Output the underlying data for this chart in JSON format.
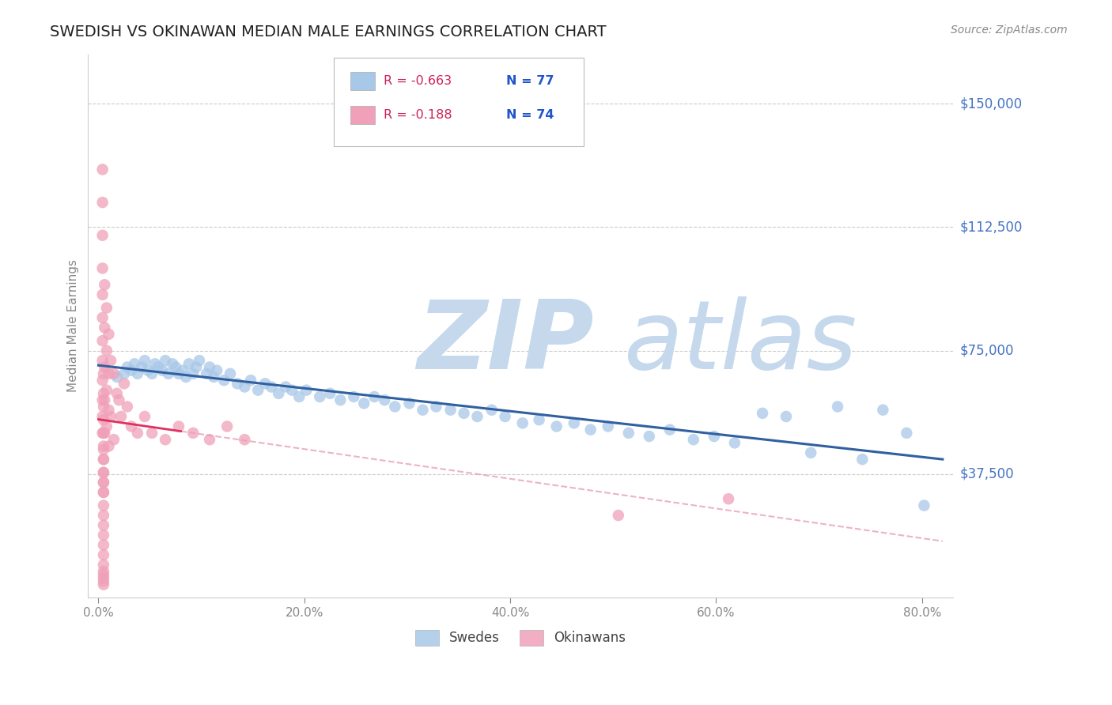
{
  "title": "SWEDISH VS OKINAWAN MEDIAN MALE EARNINGS CORRELATION CHART",
  "source": "Source: ZipAtlas.com",
  "ylabel": "Median Male Earnings",
  "xlabel_ticks": [
    "0.0%",
    "20.0%",
    "40.0%",
    "60.0%",
    "80.0%"
  ],
  "xlabel_tick_vals": [
    0.0,
    0.2,
    0.4,
    0.6,
    0.8
  ],
  "ytick_labels": [
    "$37,500",
    "$75,000",
    "$112,500",
    "$150,000"
  ],
  "ytick_vals": [
    37500,
    75000,
    112500,
    150000
  ],
  "ylim": [
    0,
    165000
  ],
  "xlim": [
    -0.01,
    0.83
  ],
  "blue_color": "#a8c8e8",
  "pink_color": "#f0a0b8",
  "blue_line_color": "#3060a0",
  "pink_line_solid_color": "#e03060",
  "pink_line_dashed_color": "#e8a0b8",
  "watermark_zip_color": "#c5d8ec",
  "watermark_atlas_color": "#c5d8ec",
  "grid_color": "#cccccc",
  "legend_R_color": "#e05080",
  "legend_N_color": "#3060c0",
  "legend_text_color": "#3366cc",
  "swedes_x": [
    0.018,
    0.025,
    0.028,
    0.032,
    0.035,
    0.038,
    0.042,
    0.045,
    0.048,
    0.052,
    0.055,
    0.058,
    0.062,
    0.065,
    0.068,
    0.072,
    0.075,
    0.078,
    0.082,
    0.085,
    0.088,
    0.092,
    0.095,
    0.098,
    0.105,
    0.108,
    0.112,
    0.115,
    0.122,
    0.128,
    0.135,
    0.142,
    0.148,
    0.155,
    0.162,
    0.168,
    0.175,
    0.182,
    0.188,
    0.195,
    0.202,
    0.215,
    0.225,
    0.235,
    0.248,
    0.258,
    0.268,
    0.278,
    0.288,
    0.302,
    0.315,
    0.328,
    0.342,
    0.355,
    0.368,
    0.382,
    0.395,
    0.412,
    0.428,
    0.445,
    0.462,
    0.478,
    0.495,
    0.515,
    0.535,
    0.555,
    0.578,
    0.598,
    0.618,
    0.645,
    0.668,
    0.692,
    0.718,
    0.742,
    0.762,
    0.785,
    0.802
  ],
  "swedes_y": [
    67000,
    68000,
    70000,
    69000,
    71000,
    68000,
    70000,
    72000,
    69000,
    68000,
    71000,
    70000,
    69000,
    72000,
    68000,
    71000,
    70000,
    68000,
    69000,
    67000,
    71000,
    68000,
    70000,
    72000,
    68000,
    70000,
    67000,
    69000,
    66000,
    68000,
    65000,
    64000,
    66000,
    63000,
    65000,
    64000,
    62000,
    64000,
    63000,
    61000,
    63000,
    61000,
    62000,
    60000,
    61000,
    59000,
    61000,
    60000,
    58000,
    59000,
    57000,
    58000,
    57000,
    56000,
    55000,
    57000,
    55000,
    53000,
    54000,
    52000,
    53000,
    51000,
    52000,
    50000,
    49000,
    51000,
    48000,
    49000,
    47000,
    56000,
    55000,
    44000,
    58000,
    42000,
    57000,
    50000,
    28000
  ],
  "okinawans_x": [
    0.004,
    0.004,
    0.004,
    0.004,
    0.004,
    0.004,
    0.004,
    0.004,
    0.004,
    0.004,
    0.004,
    0.004,
    0.006,
    0.006,
    0.006,
    0.006,
    0.006,
    0.008,
    0.008,
    0.008,
    0.008,
    0.01,
    0.01,
    0.01,
    0.01,
    0.012,
    0.012,
    0.015,
    0.015,
    0.018,
    0.02,
    0.022,
    0.025,
    0.028,
    0.032,
    0.038,
    0.045,
    0.052,
    0.065,
    0.078,
    0.092,
    0.108,
    0.125,
    0.142,
    0.005,
    0.005,
    0.005,
    0.005,
    0.005,
    0.505,
    0.612,
    0.005,
    0.005,
    0.005,
    0.005,
    0.005,
    0.005,
    0.005,
    0.005,
    0.005,
    0.005,
    0.005,
    0.005,
    0.005,
    0.005,
    0.005,
    0.005,
    0.005,
    0.005,
    0.005,
    0.005,
    0.005,
    0.005
  ],
  "okinawans_y": [
    130000,
    120000,
    110000,
    100000,
    92000,
    85000,
    78000,
    72000,
    66000,
    60000,
    55000,
    50000,
    95000,
    82000,
    70000,
    60000,
    50000,
    88000,
    75000,
    63000,
    52000,
    80000,
    68000,
    57000,
    46000,
    72000,
    55000,
    68000,
    48000,
    62000,
    60000,
    55000,
    65000,
    58000,
    52000,
    50000,
    55000,
    50000,
    48000,
    52000,
    50000,
    48000,
    52000,
    48000,
    45000,
    42000,
    38000,
    35000,
    32000,
    25000,
    30000,
    68000,
    62000,
    58000,
    54000,
    50000,
    46000,
    42000,
    38000,
    35000,
    32000,
    28000,
    25000,
    22000,
    19000,
    16000,
    13000,
    10000,
    8000,
    7000,
    6000,
    5000,
    4000
  ]
}
